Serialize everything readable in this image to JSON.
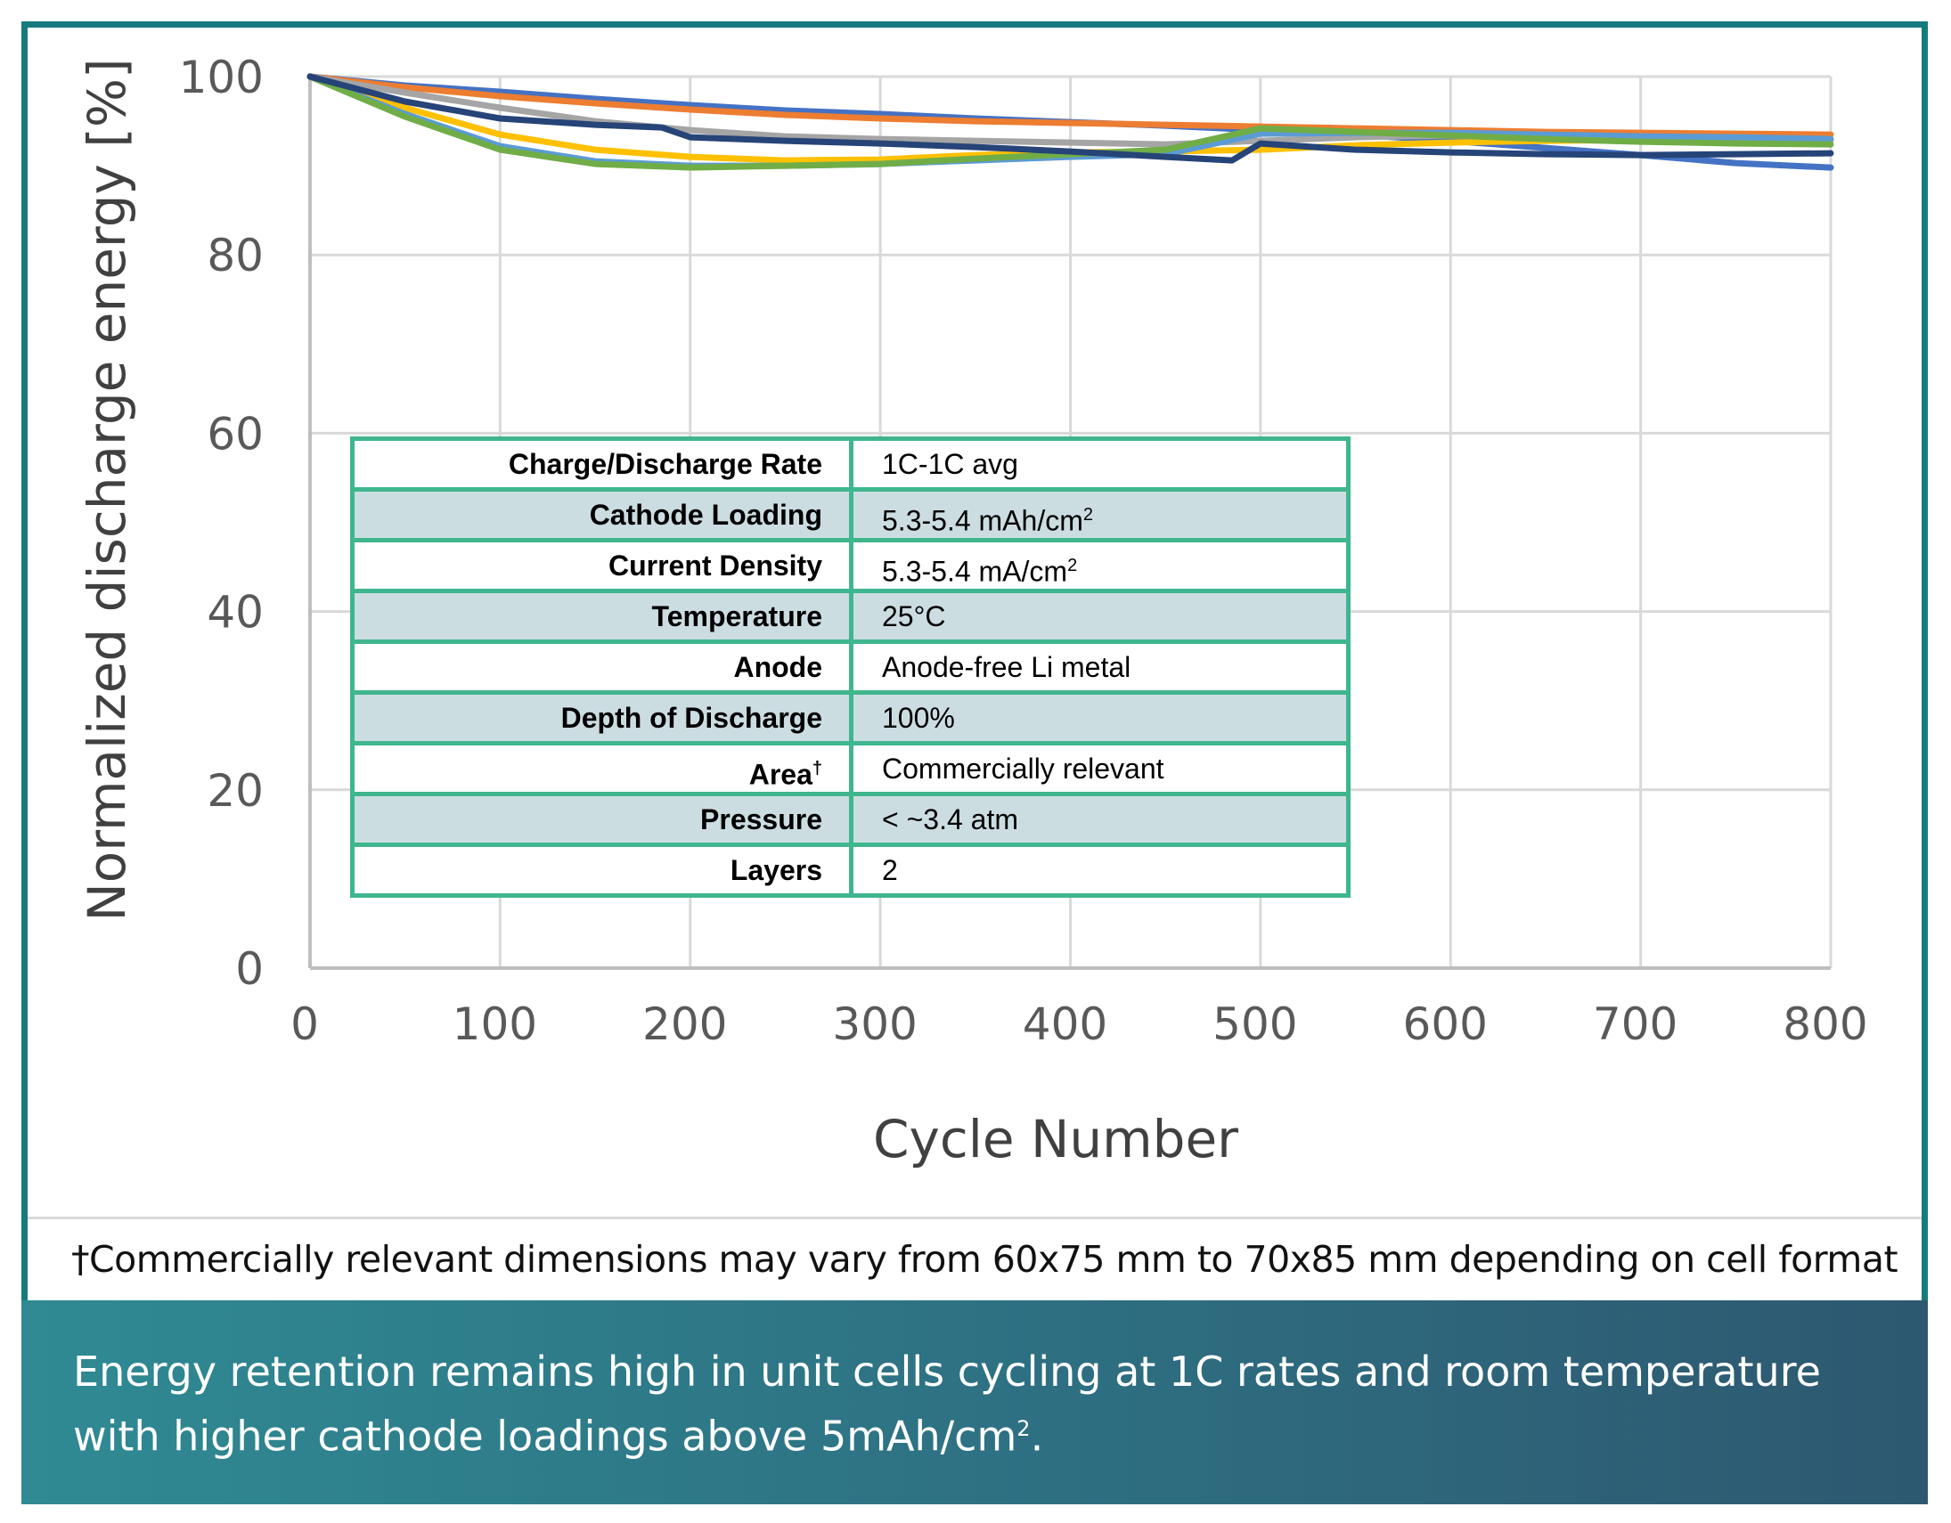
{
  "chart_data": {
    "type": "line",
    "title": "",
    "xlabel": "Cycle Number",
    "ylabel": "Normalized discharge energy [%]",
    "xlim": [
      0,
      800
    ],
    "ylim": [
      0,
      100
    ],
    "x_ticks": [
      "0",
      "100",
      "200",
      "300",
      "400",
      "500",
      "600",
      "700",
      "800"
    ],
    "y_ticks": [
      "0",
      "20",
      "40",
      "60",
      "80",
      "100"
    ],
    "grid": true,
    "series": [
      {
        "name": "cell-blue",
        "color": "#4472c4",
        "x": [
          0,
          50,
          100,
          150,
          200,
          250,
          300,
          350,
          400,
          450,
          500,
          550,
          600,
          650,
          700,
          750,
          800
        ],
        "y": [
          100,
          99,
          98.3,
          97.5,
          96.8,
          96.2,
          95.8,
          95.3,
          94.9,
          94.5,
          94,
          93.5,
          92.8,
          92,
          91.2,
          90.3,
          89.8
        ]
      },
      {
        "name": "cell-orange",
        "color": "#ed7d31",
        "x": [
          0,
          50,
          100,
          150,
          200,
          250,
          300,
          350,
          400,
          450,
          500,
          550,
          600,
          650,
          700,
          750,
          800
        ],
        "y": [
          100,
          98.8,
          97.8,
          97,
          96.3,
          95.7,
          95.3,
          95,
          94.8,
          94.6,
          94.4,
          94.2,
          94,
          93.8,
          93.7,
          93.6,
          93.5
        ]
      },
      {
        "name": "cell-gray",
        "color": "#a5a5a5",
        "x": [
          0,
          50,
          100,
          150,
          200,
          250,
          300,
          350,
          400,
          450,
          500,
          550,
          600,
          650,
          700,
          750,
          800
        ],
        "y": [
          100,
          98.2,
          96.5,
          95,
          94,
          93.3,
          93,
          92.8,
          92.6,
          92.4,
          92.8,
          93.2,
          93.4,
          93.4,
          93.2,
          93,
          92.9
        ]
      },
      {
        "name": "cell-yellow",
        "color": "#ffc000",
        "x": [
          0,
          50,
          100,
          150,
          200,
          250,
          300,
          350,
          400,
          450,
          500,
          550,
          600,
          650,
          700,
          750,
          800
        ],
        "y": [
          100,
          96.5,
          93.5,
          91.8,
          91,
          90.6,
          90.7,
          91.2,
          91.5,
          91.6,
          91.8,
          92.3,
          92.6,
          92.8,
          92.9,
          93,
          93
        ]
      },
      {
        "name": "cell-lightblue",
        "color": "#5b9bd5",
        "x": [
          0,
          50,
          100,
          150,
          200,
          250,
          300,
          350,
          400,
          450,
          500,
          550,
          600,
          650,
          700,
          750,
          800
        ],
        "y": [
          100,
          95.8,
          92.2,
          90.5,
          90,
          90,
          90.2,
          90.6,
          91,
          91.3,
          93.6,
          93.7,
          93.7,
          93.5,
          93.3,
          93.2,
          93
        ]
      },
      {
        "name": "cell-green",
        "color": "#70ad47",
        "x": [
          0,
          50,
          100,
          150,
          200,
          250,
          300,
          350,
          400,
          450,
          500,
          550,
          600,
          650,
          700,
          750,
          800
        ],
        "y": [
          100,
          95.5,
          91.8,
          90.2,
          89.8,
          90,
          90.2,
          90.8,
          91.3,
          91.8,
          94.2,
          93.8,
          93.4,
          93,
          92.7,
          92.5,
          92.4
        ]
      },
      {
        "name": "cell-navy",
        "color": "#264478",
        "x": [
          0,
          50,
          100,
          150,
          185,
          200,
          250,
          300,
          350,
          400,
          450,
          485,
          500,
          550,
          600,
          650,
          700,
          750,
          800
        ],
        "y": [
          100,
          97.2,
          95.3,
          94.6,
          94.3,
          93.2,
          92.8,
          92.5,
          92.1,
          91.6,
          91,
          90.6,
          92.5,
          91.8,
          91.5,
          91.3,
          91.2,
          91.3,
          91.4
        ]
      }
    ]
  },
  "params_table": [
    {
      "label": "Charge/Discharge Rate",
      "value": "1C-1C avg",
      "sup": ""
    },
    {
      "label": "Cathode Loading",
      "value": "5.3-5.4 mAh/cm",
      "sup": "2"
    },
    {
      "label": "Current Density",
      "value": "5.3-5.4 mA/cm",
      "sup": "2"
    },
    {
      "label": "Temperature",
      "value": "25°C",
      "sup": ""
    },
    {
      "label": "Anode",
      "value": "Anode-free Li metal",
      "sup": ""
    },
    {
      "label": "Depth of Discharge",
      "value": "100%",
      "sup": ""
    },
    {
      "label": "Area",
      "label_sup": "†",
      "value": "Commercially relevant",
      "sup": ""
    },
    {
      "label": "Pressure",
      "value": "< ~3.4 atm",
      "sup": ""
    },
    {
      "label": "Layers",
      "value": "2",
      "sup": ""
    }
  ],
  "footnote": "†Commercially relevant dimensions may vary from 60x75 mm to 70x85 mm depending on cell format",
  "caption": {
    "text": "Energy retention remains high in unit cells cycling at 1C rates and room temperature with higher cathode loadings above 5mAh/cm",
    "sup": "2",
    "end": "."
  }
}
